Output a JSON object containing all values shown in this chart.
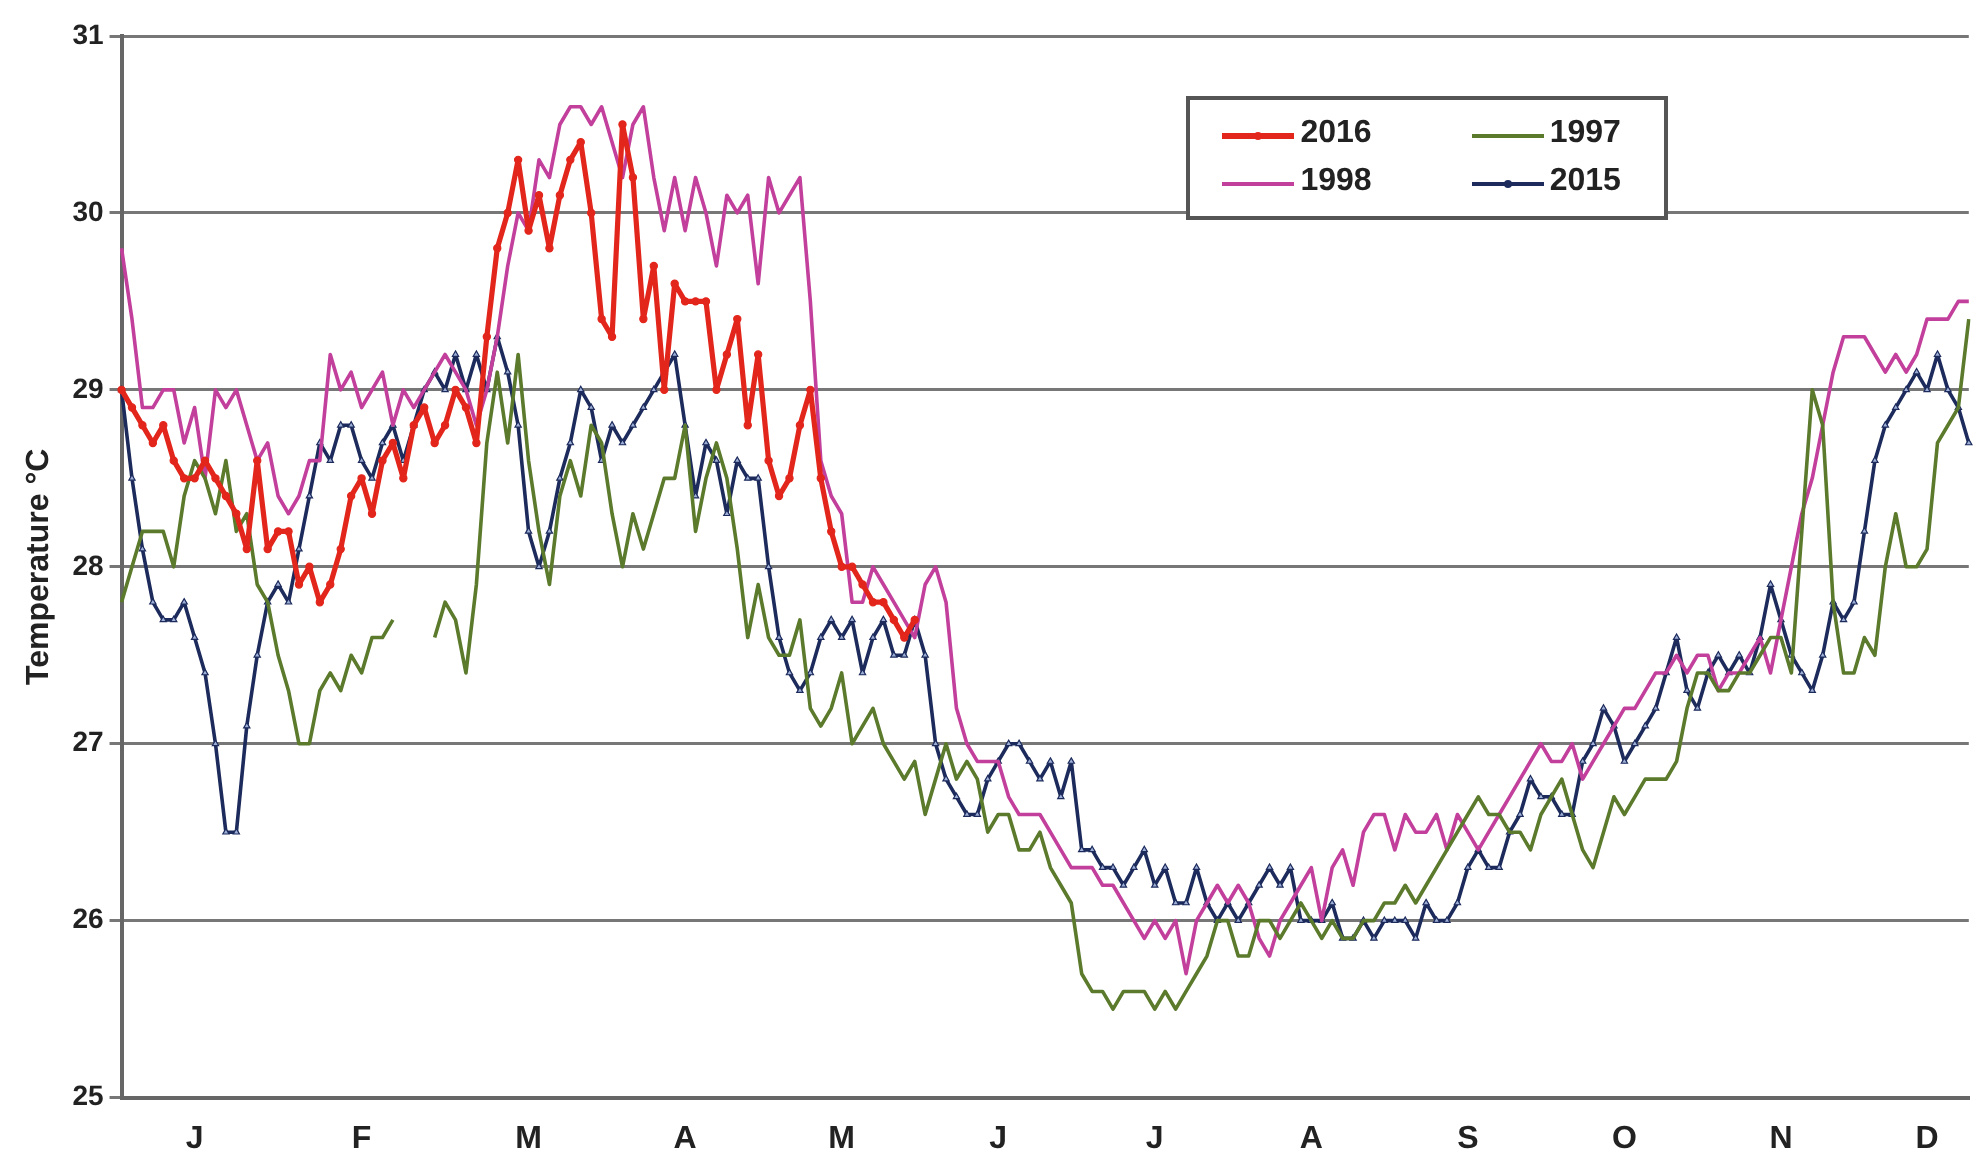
{
  "chart_data": {
    "type": "line",
    "ylabel": "Temperature °C",
    "ylim": [
      25,
      31
    ],
    "yticks": [
      25,
      26,
      27,
      28,
      29,
      30,
      31
    ],
    "grid": "y",
    "legend": "top right",
    "line_style": "solid",
    "categories": [
      null,
      null,
      null,
      null,
      null,
      null,
      null,
      "J",
      null,
      null,
      null,
      null,
      null,
      null,
      null,
      null,
      null,
      null,
      null,
      null,
      null,
      null,
      null,
      "F",
      null,
      null,
      null,
      null,
      null,
      null,
      null,
      null,
      null,
      null,
      null,
      null,
      null,
      null,
      null,
      "M",
      null,
      null,
      null,
      null,
      null,
      null,
      null,
      null,
      null,
      null,
      null,
      null,
      null,
      null,
      "A",
      null,
      null,
      null,
      null,
      null,
      null,
      null,
      null,
      null,
      null,
      null,
      null,
      null,
      null,
      "M",
      null,
      null,
      null,
      null,
      null,
      null,
      null,
      null,
      null,
      null,
      null,
      null,
      null,
      null,
      "J",
      null,
      null,
      null,
      null,
      null,
      null,
      null,
      null,
      null,
      null,
      null,
      null,
      null,
      null,
      "J",
      null,
      null,
      null,
      null,
      null,
      null,
      null,
      null,
      null,
      null,
      null,
      null,
      null,
      null,
      "A",
      null,
      null,
      null,
      null,
      null,
      null,
      null,
      null,
      null,
      null,
      null,
      null,
      null,
      null,
      "S",
      null,
      null,
      null,
      null,
      null,
      null,
      null,
      null,
      null,
      null,
      null,
      null,
      null,
      null,
      "O",
      null,
      null,
      null,
      null,
      null,
      null,
      null,
      null,
      null,
      null,
      null,
      null,
      null,
      null,
      "N",
      null,
      null,
      null,
      null,
      null,
      null,
      null,
      null,
      null,
      null,
      null,
      null,
      null,
      "D",
      null,
      null,
      null,
      null
    ],
    "series": [
      {
        "name": "2016",
        "color": "#e3261c",
        "marker": "circle",
        "values": [
          29.0,
          28.9,
          28.8,
          28.7,
          28.8,
          28.6,
          28.5,
          28.5,
          28.6,
          28.5,
          28.4,
          28.3,
          28.1,
          28.6,
          28.1,
          28.2,
          28.2,
          27.9,
          28.0,
          27.8,
          27.9,
          28.1,
          28.4,
          28.5,
          28.3,
          28.6,
          28.7,
          28.5,
          28.8,
          28.9,
          28.7,
          28.8,
          29.0,
          28.9,
          28.7,
          29.3,
          29.8,
          30.0,
          30.3,
          29.9,
          30.1,
          29.8,
          30.1,
          30.3,
          30.4,
          30.0,
          29.4,
          29.3,
          30.5,
          30.2,
          29.4,
          29.7,
          29.0,
          29.6,
          29.5,
          29.5,
          29.5,
          29.0,
          29.2,
          29.4,
          28.8,
          29.2,
          28.6,
          28.4,
          28.5,
          28.8,
          29.0,
          28.5,
          28.2,
          28.0,
          28.0,
          27.9,
          27.8,
          27.8,
          27.7,
          27.6,
          27.7,
          null,
          null,
          null,
          null,
          null,
          null,
          null,
          null,
          null,
          null,
          null,
          null,
          null,
          null,
          null,
          null,
          null,
          null,
          null,
          null,
          null,
          null,
          null,
          null,
          null,
          null,
          null,
          null,
          null,
          null,
          null,
          null,
          null,
          null,
          null,
          null,
          null,
          null,
          null,
          null,
          null,
          null,
          null,
          null,
          null,
          null,
          null,
          null,
          null,
          null,
          null,
          null,
          null,
          null,
          null,
          null,
          null,
          null,
          null,
          null,
          null,
          null,
          null,
          null,
          null,
          null,
          null,
          null,
          null,
          null,
          null,
          null,
          null,
          null,
          null,
          null,
          null,
          null,
          null,
          null,
          null,
          null,
          null,
          null,
          null,
          null,
          null,
          null,
          null,
          null,
          null,
          null,
          null,
          null,
          null,
          null,
          null,
          null,
          null,
          null,
          null
        ]
      },
      {
        "name": "1997",
        "color": "#5b7a2c",
        "marker": "none",
        "values": [
          27.8,
          28.0,
          28.2,
          28.2,
          28.2,
          28.0,
          28.4,
          28.6,
          28.5,
          28.3,
          28.6,
          28.2,
          28.3,
          27.9,
          27.8,
          27.5,
          27.3,
          27.0,
          27.0,
          27.3,
          27.4,
          27.3,
          27.5,
          27.4,
          27.6,
          27.6,
          27.7,
          null,
          null,
          null,
          27.6,
          27.8,
          27.7,
          27.4,
          27.9,
          28.7,
          29.1,
          28.7,
          29.2,
          28.6,
          28.2,
          27.9,
          28.4,
          28.6,
          28.4,
          28.8,
          28.7,
          28.3,
          28.0,
          28.3,
          28.1,
          28.3,
          28.5,
          28.5,
          28.8,
          28.2,
          28.5,
          28.7,
          28.5,
          28.1,
          27.6,
          27.9,
          27.6,
          27.5,
          27.5,
          27.7,
          27.2,
          27.1,
          27.2,
          27.4,
          27.0,
          27.1,
          27.2,
          27.0,
          26.9,
          26.8,
          26.9,
          26.6,
          26.8,
          27.0,
          26.8,
          26.9,
          26.8,
          26.5,
          26.6,
          26.6,
          26.4,
          26.4,
          26.5,
          26.3,
          26.2,
          26.1,
          25.7,
          25.6,
          25.6,
          25.5,
          25.6,
          25.6,
          25.6,
          25.5,
          25.6,
          25.5,
          25.6,
          25.7,
          25.8,
          26.0,
          26.0,
          25.8,
          25.8,
          26.0,
          26.0,
          25.9,
          26.0,
          26.1,
          26.0,
          25.9,
          26.0,
          25.9,
          25.9,
          26.0,
          26.0,
          26.1,
          26.1,
          26.2,
          26.1,
          26.2,
          26.3,
          26.4,
          26.5,
          26.6,
          26.7,
          26.6,
          26.6,
          26.5,
          26.5,
          26.4,
          26.6,
          26.7,
          26.8,
          26.6,
          26.4,
          26.3,
          26.5,
          26.7,
          26.6,
          26.7,
          26.8,
          26.8,
          26.8,
          26.9,
          27.2,
          27.4,
          27.4,
          27.3,
          27.3,
          27.4,
          27.4,
          27.5,
          27.6,
          27.6,
          27.4,
          28.2,
          29.0,
          28.8,
          27.8,
          27.4,
          27.4,
          27.6,
          27.5,
          28.0,
          28.3,
          28.0,
          28.0,
          28.1,
          28.7,
          28.8,
          28.9,
          29.4
        ]
      },
      {
        "name": "1998",
        "color": "#c23f9c",
        "marker": "none",
        "values": [
          29.8,
          29.4,
          28.9,
          28.9,
          29.0,
          29.0,
          28.7,
          28.9,
          28.5,
          29.0,
          28.9,
          29.0,
          28.8,
          28.6,
          28.7,
          28.4,
          28.3,
          28.4,
          28.6,
          28.6,
          29.2,
          29.0,
          29.1,
          28.9,
          29.0,
          29.1,
          28.8,
          29.0,
          28.9,
          29.0,
          29.1,
          29.2,
          29.1,
          29.0,
          28.8,
          29.0,
          29.3,
          29.7,
          30.0,
          29.9,
          30.3,
          30.2,
          30.5,
          30.6,
          30.6,
          30.5,
          30.6,
          30.4,
          30.2,
          30.5,
          30.6,
          30.2,
          29.9,
          30.2,
          29.9,
          30.2,
          30.0,
          29.7,
          30.1,
          30.0,
          30.1,
          29.6,
          30.2,
          30.0,
          30.1,
          30.2,
          29.5,
          28.6,
          28.4,
          28.3,
          27.8,
          27.8,
          28.0,
          27.9,
          27.8,
          27.7,
          27.6,
          27.9,
          28.0,
          27.8,
          27.2,
          27.0,
          26.9,
          26.9,
          26.9,
          26.7,
          26.6,
          26.6,
          26.6,
          26.5,
          26.4,
          26.3,
          26.3,
          26.3,
          26.2,
          26.2,
          26.1,
          26.0,
          25.9,
          26.0,
          25.9,
          26.0,
          25.7,
          26.0,
          26.1,
          26.2,
          26.1,
          26.2,
          26.1,
          25.9,
          25.8,
          26.0,
          26.1,
          26.2,
          26.3,
          26.0,
          26.3,
          26.4,
          26.2,
          26.5,
          26.6,
          26.6,
          26.4,
          26.6,
          26.5,
          26.5,
          26.6,
          26.4,
          26.6,
          26.5,
          26.4,
          26.5,
          26.6,
          26.7,
          26.8,
          26.9,
          27.0,
          26.9,
          26.9,
          27.0,
          26.8,
          26.9,
          27.0,
          27.1,
          27.2,
          27.2,
          27.3,
          27.4,
          27.4,
          27.5,
          27.4,
          27.5,
          27.5,
          27.3,
          27.4,
          27.4,
          27.5,
          27.6,
          27.4,
          27.7,
          28.0,
          28.3,
          28.5,
          28.8,
          29.1,
          29.3,
          29.3,
          29.3,
          29.2,
          29.1,
          29.2,
          29.1,
          29.2,
          29.4,
          29.4,
          29.4,
          29.5,
          29.5
        ]
      },
      {
        "name": "2015",
        "color": "#1c2b5c",
        "marker": "triangle",
        "values": [
          29.0,
          28.5,
          28.1,
          27.8,
          27.7,
          27.7,
          27.8,
          27.6,
          27.4,
          27.0,
          26.5,
          26.5,
          27.1,
          27.5,
          27.8,
          27.9,
          27.8,
          28.1,
          28.4,
          28.7,
          28.6,
          28.8,
          28.8,
          28.6,
          28.5,
          28.7,
          28.8,
          28.6,
          28.8,
          29.0,
          29.1,
          29.0,
          29.2,
          29.0,
          29.2,
          29.0,
          29.3,
          29.1,
          28.8,
          28.2,
          28.0,
          28.2,
          28.5,
          28.7,
          29.0,
          28.9,
          28.6,
          28.8,
          28.7,
          28.8,
          28.9,
          29.0,
          29.1,
          29.2,
          28.8,
          28.4,
          28.7,
          28.6,
          28.3,
          28.6,
          28.5,
          28.5,
          28.0,
          27.6,
          27.4,
          27.3,
          27.4,
          27.6,
          27.7,
          27.6,
          27.7,
          27.4,
          27.6,
          27.7,
          27.5,
          27.5,
          27.7,
          27.5,
          27.0,
          26.8,
          26.7,
          26.6,
          26.6,
          26.8,
          26.9,
          27.0,
          27.0,
          26.9,
          26.8,
          26.9,
          26.7,
          26.9,
          26.4,
          26.4,
          26.3,
          26.3,
          26.2,
          26.3,
          26.4,
          26.2,
          26.3,
          26.1,
          26.1,
          26.3,
          26.1,
          26.0,
          26.1,
          26.0,
          26.1,
          26.2,
          26.3,
          26.2,
          26.3,
          26.0,
          26.0,
          26.0,
          26.1,
          25.9,
          25.9,
          26.0,
          25.9,
          26.0,
          26.0,
          26.0,
          25.9,
          26.1,
          26.0,
          26.0,
          26.1,
          26.3,
          26.4,
          26.3,
          26.3,
          26.5,
          26.6,
          26.8,
          26.7,
          26.7,
          26.6,
          26.6,
          26.9,
          27.0,
          27.2,
          27.1,
          26.9,
          27.0,
          27.1,
          27.2,
          27.4,
          27.6,
          27.3,
          27.2,
          27.4,
          27.5,
          27.4,
          27.5,
          27.4,
          27.6,
          27.9,
          27.7,
          27.5,
          27.4,
          27.3,
          27.5,
          27.8,
          27.7,
          27.8,
          28.2,
          28.6,
          28.8,
          28.9,
          29.0,
          29.1,
          29.0,
          29.2,
          29.0,
          28.9,
          28.7
        ]
      }
    ]
  }
}
